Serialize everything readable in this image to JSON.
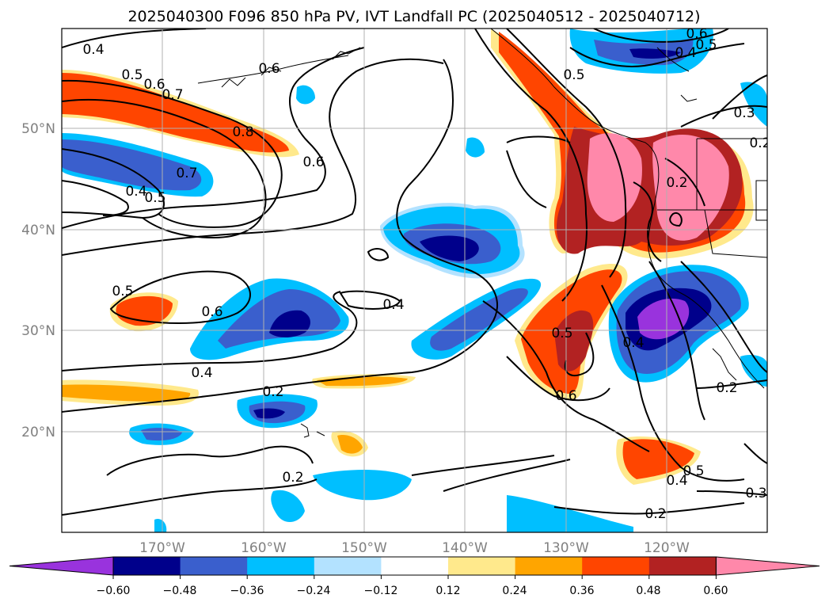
{
  "title": "2025040300 F096 850 hPa PV, IVT Landfall PC (2025040512 - 2025040712)",
  "map": {
    "lon_labels": [
      "170°W",
      "160°W",
      "150°W",
      "140°W",
      "130°W",
      "120°W"
    ],
    "lat_labels": [
      "50°N",
      "40°N",
      "30°N",
      "20°N"
    ],
    "gridlines": true,
    "contour_labels": [
      "0.4",
      "0.5",
      "0.6",
      "0.7",
      "0.8",
      "0.6",
      "0.7",
      "0.4",
      "0.5",
      "0.5",
      "0.6",
      "0.4",
      "0.4",
      "0.2",
      "0.2",
      "0.6",
      "0.5",
      "0.5",
      "0.6",
      "0.6",
      "0.5",
      "0.4",
      "0.3",
      "0.2",
      "0.2",
      "0.4",
      "0.5",
      "0.2",
      "0.3",
      "0.2",
      "0.4"
    ]
  },
  "colorbar": {
    "tick_labels": [
      "−0.60",
      "−0.48",
      "−0.36",
      "−0.24",
      "−0.12",
      "0.12",
      "0.24",
      "0.36",
      "0.48",
      "0.60"
    ],
    "colors": [
      "#9933dd",
      "#00008b",
      "#3a5fcd",
      "#00bfff",
      "#b3e2ff",
      "#ffffff",
      "#ffe98c",
      "#ffa500",
      "#ff4500",
      "#b22222",
      "#ff88aa"
    ]
  }
}
